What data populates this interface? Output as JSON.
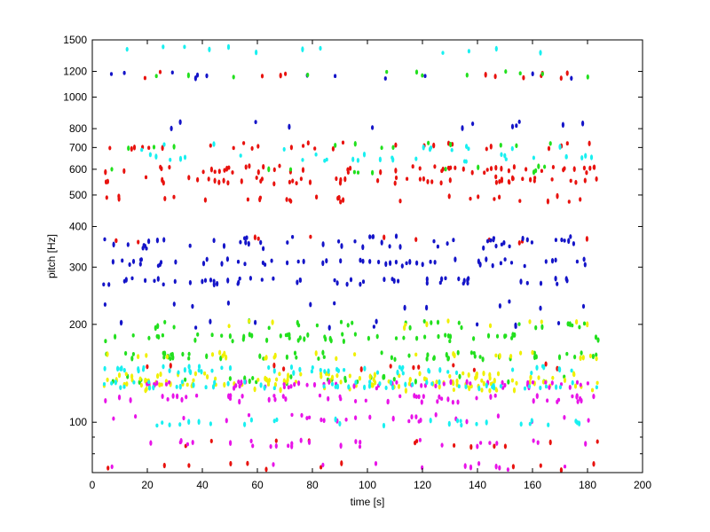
{
  "chart_data": {
    "type": "scatter",
    "title": "",
    "xlabel": "time [s]",
    "ylabel": "pitch [Hz]",
    "xlim": [
      0,
      200
    ],
    "ylim": [
      70,
      1500
    ],
    "yscale": "log",
    "grid": false,
    "legend": "none",
    "x_ticks": [
      0,
      20,
      40,
      60,
      80,
      100,
      120,
      140,
      160,
      180,
      200
    ],
    "y_ticks": [
      100,
      200,
      300,
      400,
      500,
      600,
      700,
      800,
      1000,
      1200,
      1500
    ],
    "y_minor_ticks": [
      80,
      90
    ],
    "x_ticks_unlabeled": [],
    "time_range": [
      4,
      184
    ],
    "series_colors": [
      "#e8120e",
      "#1414c8",
      "#22e01e",
      "#f0f000",
      "#e814e8",
      "#18f0f0"
    ],
    "series": [
      {
        "color": "#e8120e",
        "pitch_bands_hz": [
          555,
          600,
          710,
          485,
          365,
          86,
          73,
          148,
          1170
        ]
      },
      {
        "color": "#1414c8",
        "pitch_bands_hz": [
          272,
          310,
          365,
          350,
          230,
          200,
          1170,
          820
        ]
      },
      {
        "color": "#22e01e",
        "pitch_bands_hz": [
          182,
          160,
          200,
          135,
          710,
          600,
          1170
        ]
      },
      {
        "color": "#f0f000",
        "pitch_bands_hz": [
          132,
          138,
          128,
          160,
          200
        ]
      },
      {
        "color": "#e814e8",
        "pitch_bands_hz": [
          130,
          118,
          103,
          86,
          73
        ]
      },
      {
        "color": "#18f0f0",
        "pitch_bands_hz": [
          130,
          145,
          100,
          650,
          700,
          1400
        ]
      }
    ]
  }
}
